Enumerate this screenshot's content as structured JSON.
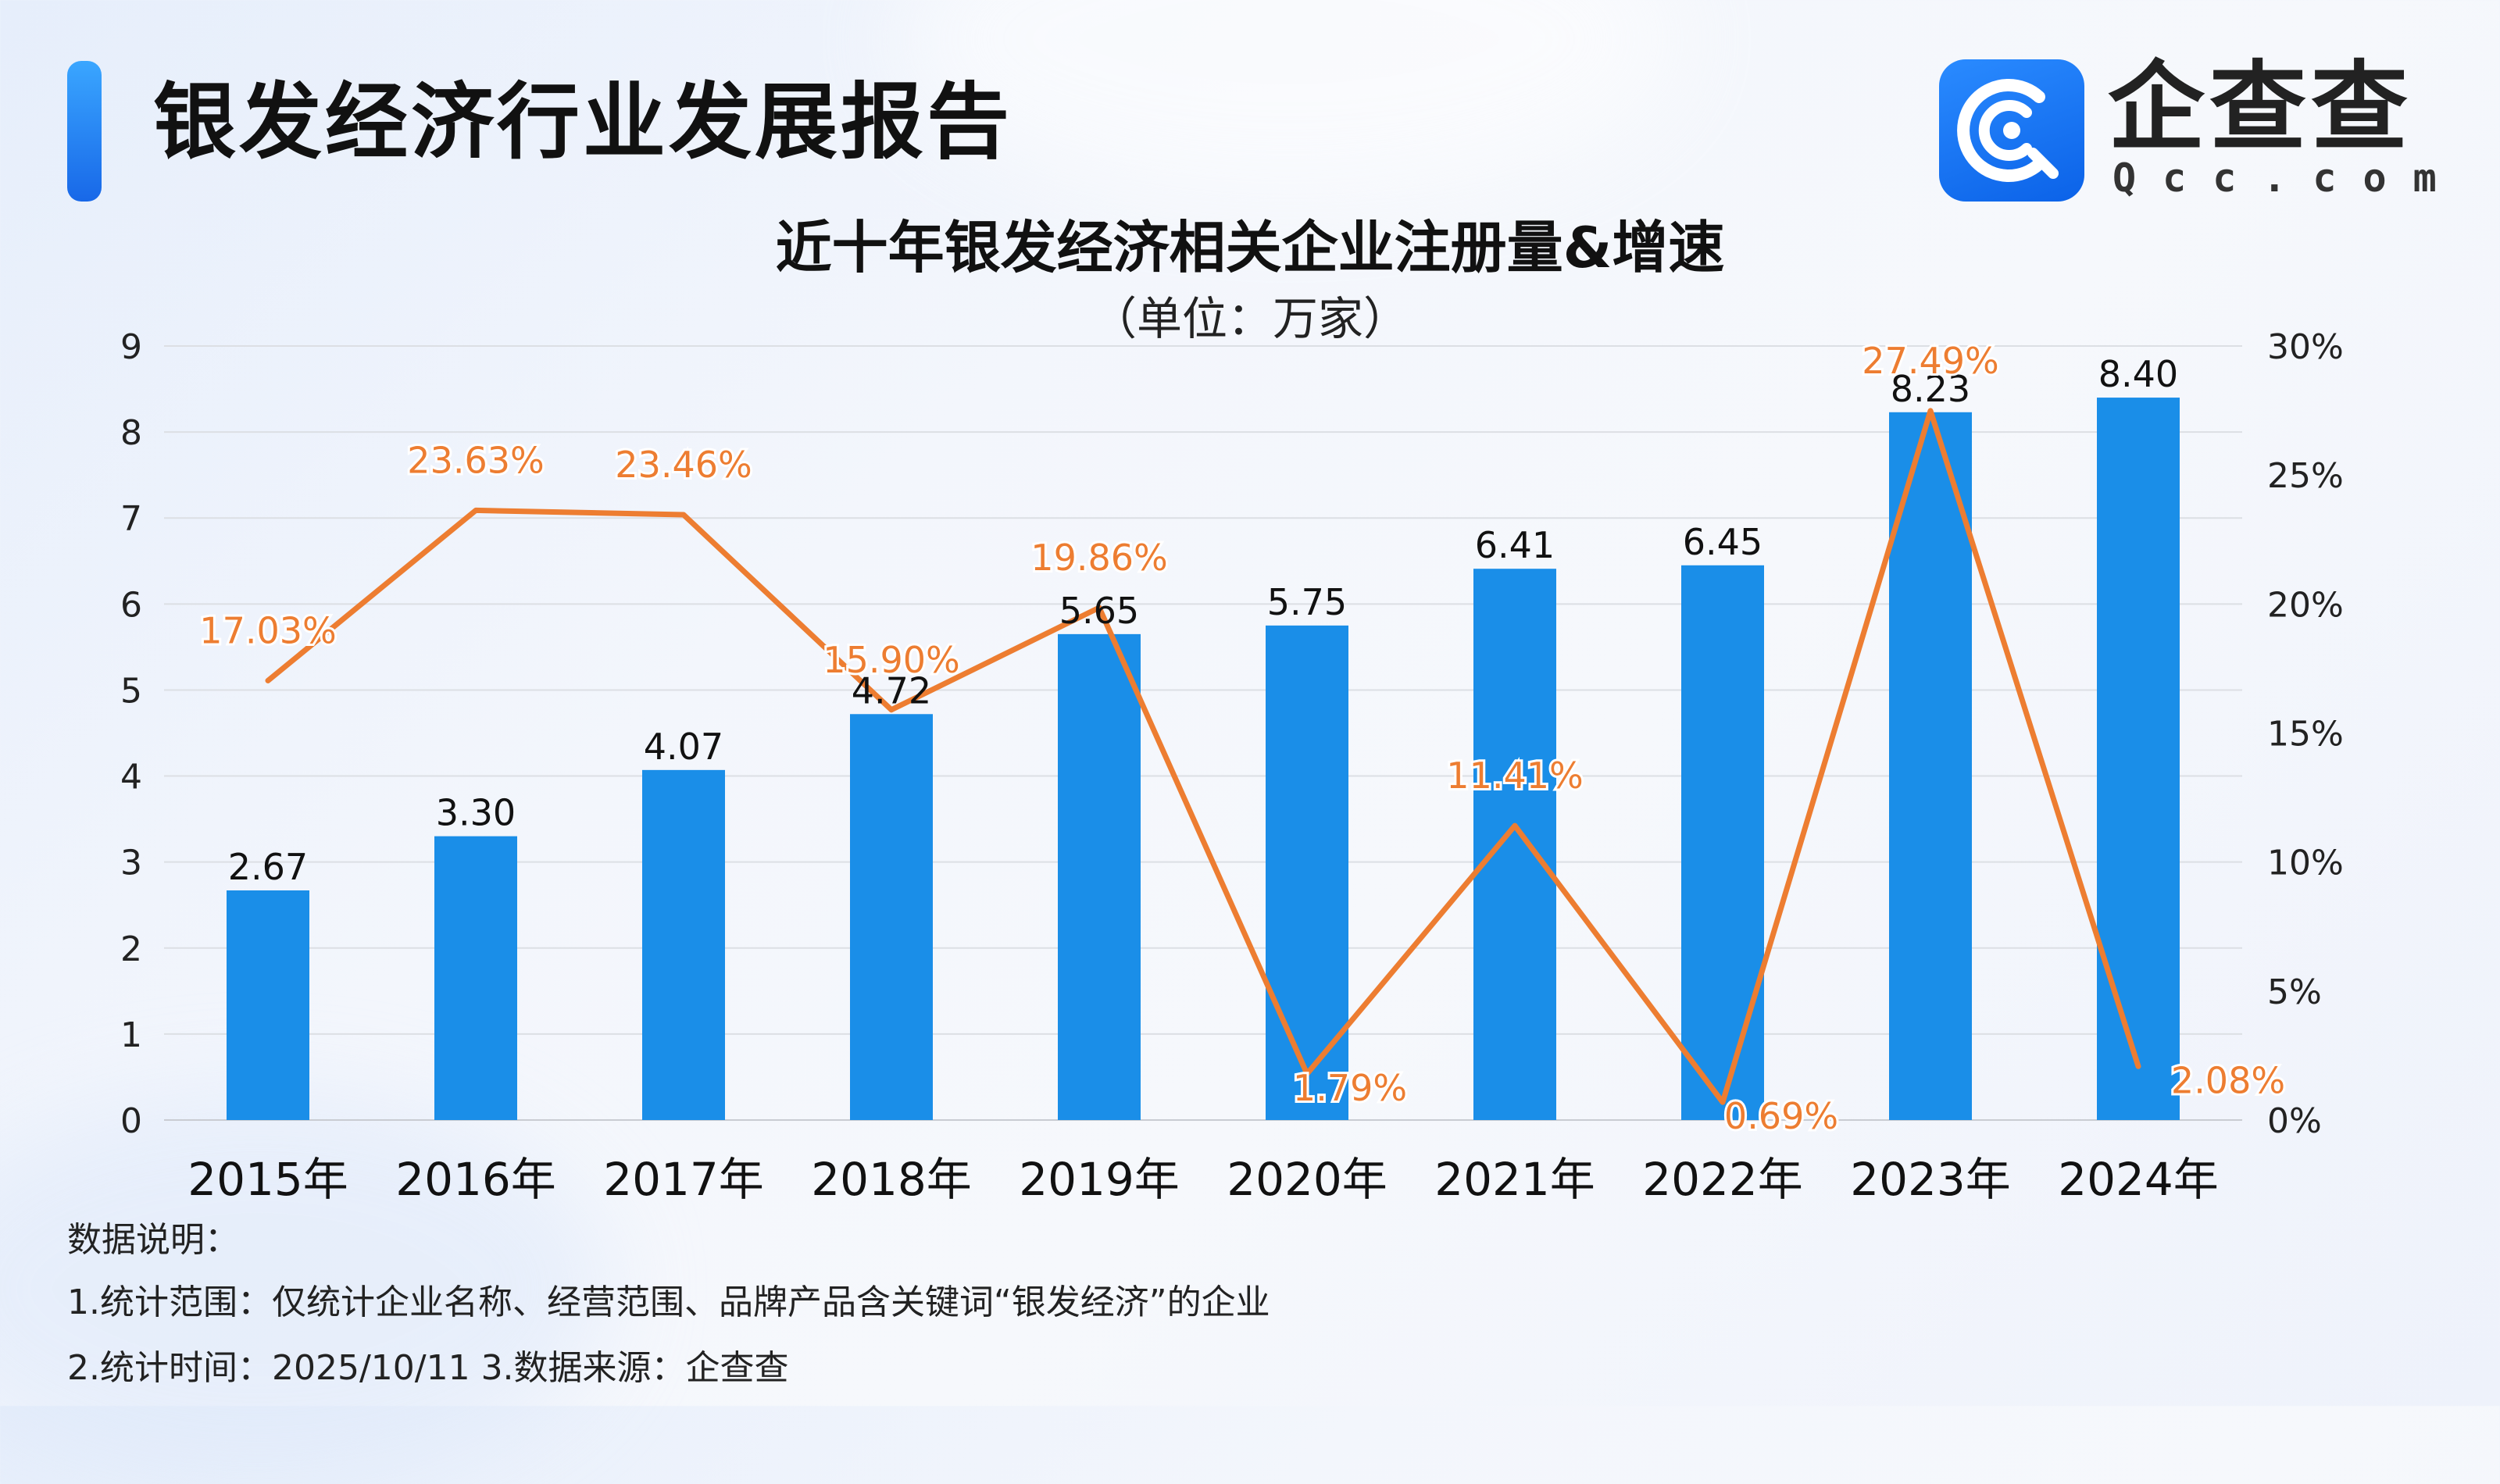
{
  "header": {
    "title": "银发经济行业发展报告",
    "logo_name": "企查查",
    "logo_sub": "Qcc.com"
  },
  "colors": {
    "bar": "#1a8ee8",
    "line": "#ed7d31",
    "accent": "#1868e8"
  },
  "chart_data": {
    "type": "bar+line",
    "title": "近十年银发经济相关企业注册量&增速",
    "subtitle": "（单位：万家）",
    "categories": [
      "2015年",
      "2016年",
      "2017年",
      "2018年",
      "2019年",
      "2020年",
      "2021年",
      "2022年",
      "2023年",
      "2024年"
    ],
    "series": [
      {
        "type": "bar",
        "axis": "left",
        "values": [
          2.67,
          3.3,
          4.07,
          4.72,
          5.65,
          5.75,
          6.41,
          6.45,
          8.23,
          8.4
        ],
        "labels": [
          "2.67",
          "3.30",
          "4.07",
          "4.72",
          "5.65",
          "5.75",
          "6.41",
          "6.45",
          "8.23",
          "8.40"
        ]
      },
      {
        "type": "line",
        "axis": "right",
        "values": [
          17.03,
          23.63,
          23.46,
          15.9,
          19.86,
          1.79,
          11.41,
          0.69,
          27.49,
          2.08
        ],
        "labels": [
          "17.03%",
          "23.63%",
          "23.46%",
          "15.90%",
          "19.86%",
          "1.79%",
          "11.41%",
          "0.69%",
          "27.49%",
          "2.08%"
        ]
      }
    ],
    "y_left": {
      "min": 0,
      "max": 9,
      "ticks": [
        "0",
        "1",
        "2",
        "3",
        "4",
        "5",
        "6",
        "7",
        "8",
        "9"
      ]
    },
    "y_right": {
      "min": 0,
      "max": 30,
      "ticks": [
        "0%",
        "5%",
        "10%",
        "15%",
        "20%",
        "25%",
        "30%"
      ]
    },
    "grid": true,
    "legend": "none"
  },
  "notes": {
    "heading": "数据说明：",
    "line1": "1.统计范围：仅统计企业名称、经营范围、品牌产品含关键词“银发经济”的企业",
    "line2": " 2.统计时间：2025/10/11  3.数据来源：企查查"
  }
}
